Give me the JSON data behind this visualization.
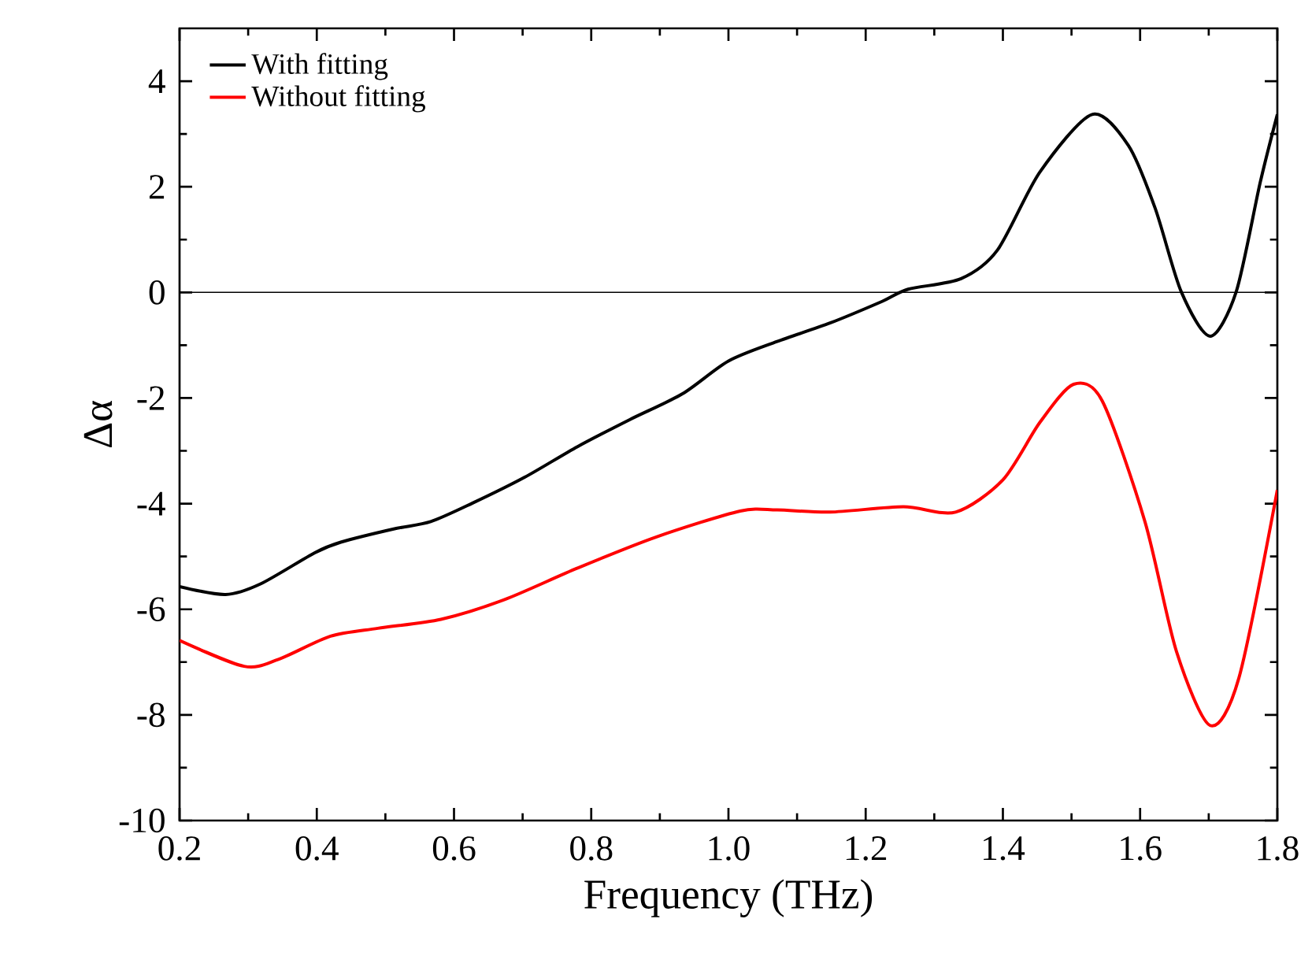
{
  "chart_data": {
    "type": "line",
    "xlabel": "Frequency (THz)",
    "ylabel": "Δα",
    "xlim": [
      0.2,
      1.8
    ],
    "xticks": [
      {
        "value": 0.2,
        "label": "0.2"
      },
      {
        "value": 0.4,
        "label": "0.4"
      },
      {
        "value": 0.6,
        "label": "0.6"
      },
      {
        "value": 0.8,
        "label": "0.8"
      },
      {
        "value": 1.0,
        "label": "1.0"
      },
      {
        "value": 1.2,
        "label": "1.2"
      },
      {
        "value": 1.4,
        "label": "1.4"
      },
      {
        "value": 1.6,
        "label": "1.6"
      },
      {
        "value": 1.8,
        "label": "1.8"
      }
    ],
    "ylim": [
      -10,
      5
    ],
    "yticks": [
      -10,
      -8,
      -6,
      -4,
      -2,
      0,
      2,
      4
    ],
    "legend": "top left",
    "grid": false,
    "marker": "none",
    "line_style": "solid",
    "ref_lines": [
      {
        "axis": "y",
        "value": 0,
        "color": "#000000"
      }
    ],
    "series": [
      {
        "name": "With fitting",
        "color": "#000000",
        "x": [
          0.2,
          0.267,
          0.318,
          0.397,
          0.435,
          0.512,
          0.566,
          0.627,
          0.703,
          0.78,
          0.856,
          0.933,
          1.0,
          1.071,
          1.148,
          1.224,
          1.262,
          1.339,
          1.392,
          1.454,
          1.53,
          1.583,
          1.622,
          1.66,
          1.702,
          1.74,
          1.775,
          1.8
        ],
        "values": [
          -5.57,
          -5.72,
          -5.52,
          -4.93,
          -4.73,
          -4.48,
          -4.34,
          -3.99,
          -3.5,
          -2.92,
          -2.41,
          -1.92,
          -1.3,
          -0.93,
          -0.58,
          -0.17,
          0.06,
          0.26,
          0.8,
          2.28,
          3.37,
          2.78,
          1.59,
          0.01,
          -0.83,
          0.01,
          2.08,
          3.37
        ]
      },
      {
        "name": "Without fitting",
        "color": "#ff0000",
        "x": [
          0.2,
          0.294,
          0.344,
          0.42,
          0.489,
          0.581,
          0.673,
          0.78,
          0.895,
          1.017,
          1.071,
          1.148,
          1.255,
          1.331,
          1.4,
          1.454,
          1.503,
          1.545,
          1.607,
          1.653,
          1.702,
          1.744,
          1.8
        ],
        "values": [
          -6.59,
          -7.08,
          -6.95,
          -6.51,
          -6.36,
          -6.19,
          -5.82,
          -5.22,
          -4.63,
          -4.14,
          -4.12,
          -4.16,
          -4.06,
          -4.16,
          -3.55,
          -2.46,
          -1.74,
          -2.06,
          -4.34,
          -6.8,
          -8.2,
          -7.3,
          -3.74
        ]
      }
    ]
  }
}
